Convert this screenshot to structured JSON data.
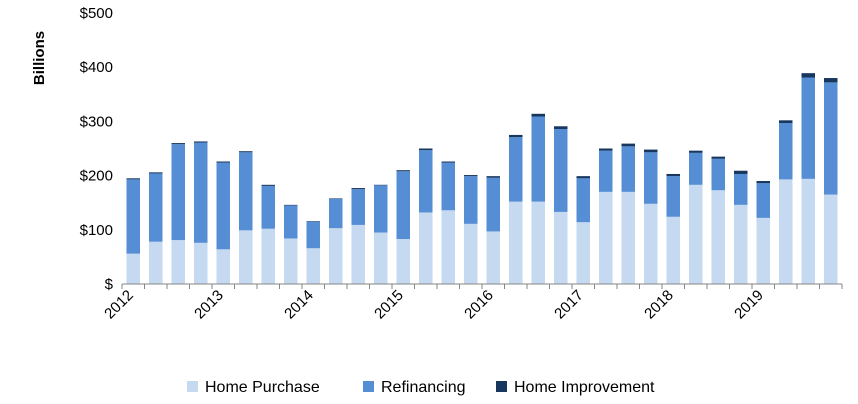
{
  "chart_data": {
    "type": "bar",
    "stacked": true,
    "ylabel": "Billions",
    "ylim": [
      0,
      500
    ],
    "y_ticks": [
      0,
      100,
      200,
      300,
      400,
      500
    ],
    "y_tick_labels": [
      "$",
      "$100",
      "$200",
      "$300",
      "$400",
      "$500"
    ],
    "x_tick_labels": [
      "2012",
      "2013",
      "2014",
      "2015",
      "2016",
      "2017",
      "2018",
      "2019"
    ],
    "bars_per_year": 4,
    "grid": false,
    "legend_position": "bottom",
    "series": [
      {
        "name": "Home Purchase",
        "color": "#c5d9f1",
        "values": [
          56,
          78,
          81,
          76,
          64,
          99,
          102,
          84,
          66,
          103,
          109,
          95,
          83,
          132,
          136,
          111,
          97,
          152,
          152,
          133,
          114,
          170,
          170,
          148,
          124,
          183,
          173,
          146,
          122,
          193,
          194,
          165
        ]
      },
      {
        "name": "Refinancing",
        "color": "#558ed5",
        "values": [
          137,
          126,
          177,
          185,
          160,
          144,
          79,
          61,
          49,
          54,
          66,
          87,
          125,
          115,
          88,
          88,
          99,
          119,
          157,
          153,
          81,
          76,
          84,
          95,
          75,
          59,
          58,
          57,
          64,
          104,
          187,
          207
        ]
      },
      {
        "name": "Home Improvement",
        "color": "#17375e",
        "values": [
          2,
          2,
          2,
          2,
          2,
          2,
          2,
          1,
          1,
          1,
          2,
          1,
          2,
          3,
          2,
          2,
          3,
          4,
          5,
          5,
          4,
          4,
          5,
          5,
          4,
          4,
          4,
          6,
          4,
          5,
          8,
          8
        ]
      }
    ]
  }
}
